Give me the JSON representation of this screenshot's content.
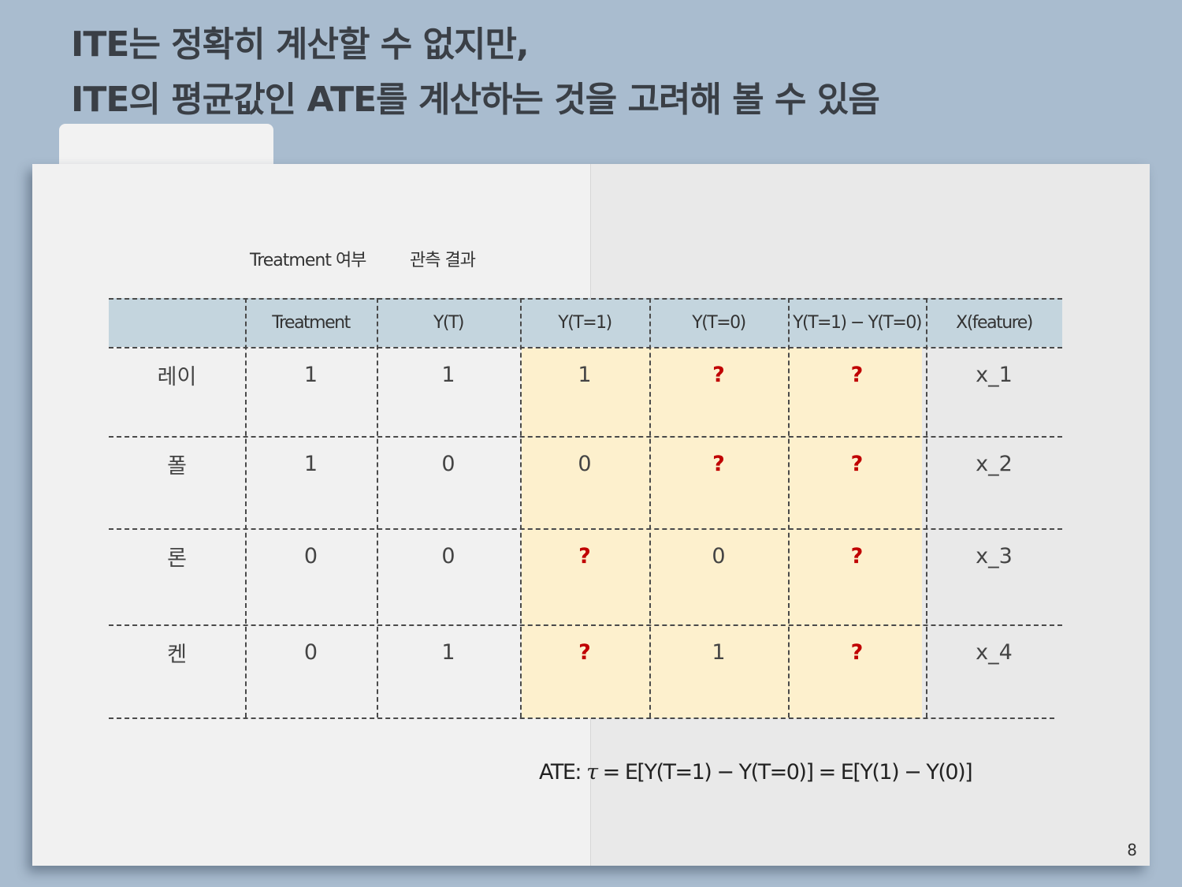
{
  "title": {
    "line1": "ITE는 정확히 계산할 수 없지만,",
    "line2": "ITE의 평균값인 ATE를 계산하는 것을 고려해 볼 수 있음"
  },
  "labels": {
    "treatment_group": "Treatment 여부",
    "observed_group": "관측 결과"
  },
  "table": {
    "headers": [
      "",
      "Treatment",
      "Y(T)",
      "Y(T=1)",
      "Y(T=0)",
      "Y(T=1) − Y(T=0)",
      "X(feature)"
    ],
    "rows": [
      [
        "레이",
        "1",
        "1",
        "1",
        "?",
        "?",
        "x_1"
      ],
      [
        "폴",
        "1",
        "0",
        "0",
        "?",
        "?",
        "x_2"
      ],
      [
        "론",
        "0",
        "0",
        "?",
        "0",
        "?",
        "x_3"
      ],
      [
        "켄",
        "0",
        "1",
        "?",
        "1",
        "?",
        "x_4"
      ]
    ]
  },
  "formula": {
    "label": "ATE:",
    "tau": "τ",
    "expression": "= E[Y(T=1) − Y(T=0)] = E[Y(1) − Y(0)]"
  },
  "page_number": "8",
  "colors": {
    "background": "#a9bccf",
    "header_band": "#c4d5de",
    "highlight": "#fdf0cd",
    "question_mark": "#c00000"
  }
}
